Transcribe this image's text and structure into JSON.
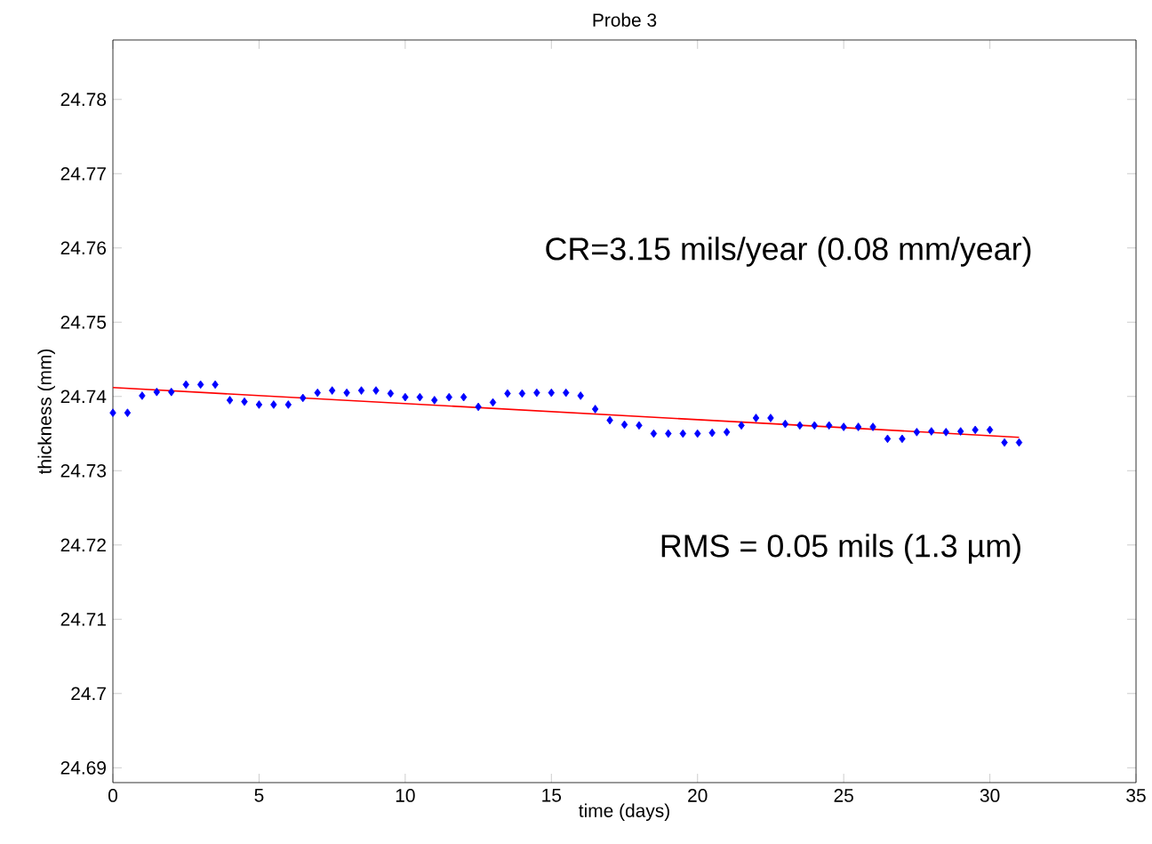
{
  "chart_data": {
    "type": "scatter",
    "title": "Probe 3",
    "xlabel": "time (days)",
    "ylabel": "thickness (mm)",
    "xlim": [
      0,
      35
    ],
    "xticks": [
      0,
      5,
      10,
      15,
      20,
      25,
      30,
      35
    ],
    "ylim": [
      24.688,
      24.788
    ],
    "yticks": [
      24.69,
      24.7,
      24.71,
      24.72,
      24.73,
      24.74,
      24.75,
      24.76,
      24.77,
      24.78
    ],
    "grid": false,
    "annotations": [
      "CR=3.15 mils/year  (0.08 mm/year)",
      "RMS = 0.05 mils (1.3 µm)"
    ],
    "series": [
      {
        "color": "#0000ff",
        "marker": "diamond",
        "x": [
          0,
          0.5,
          1,
          1.5,
          2,
          2.5,
          3,
          3.5,
          4,
          4.5,
          5,
          5.5,
          6,
          6.5,
          7,
          7.5,
          8,
          8.5,
          9,
          9.5,
          10,
          10.5,
          11,
          11.5,
          12,
          12.5,
          13,
          13.5,
          14,
          14.5,
          15,
          15.5,
          16,
          16.5,
          17,
          17.5,
          18,
          18.5,
          19,
          19.5,
          20,
          20.5,
          21,
          21.5,
          22,
          22.5,
          23,
          23.5,
          24,
          24.5,
          25,
          25.5,
          26,
          26.5,
          27,
          27.5,
          28,
          28.5,
          29,
          29.5,
          30,
          30.5,
          31
        ],
        "values": [
          24.7378,
          24.7378,
          24.7401,
          24.7406,
          24.7406,
          24.7416,
          24.7416,
          24.7416,
          24.7395,
          24.7393,
          24.7389,
          24.7389,
          24.7389,
          24.7398,
          24.7405,
          24.7408,
          24.7405,
          24.7408,
          24.7408,
          24.7404,
          24.7399,
          24.7399,
          24.7395,
          24.7399,
          24.7399,
          24.7386,
          24.7392,
          24.7404,
          24.7404,
          24.7405,
          24.7405,
          24.7405,
          24.7401,
          24.7383,
          24.7368,
          24.7362,
          24.7361,
          24.735,
          24.735,
          24.735,
          24.735,
          24.7351,
          24.7352,
          24.7361,
          24.7371,
          24.7371,
          24.7363,
          24.7361,
          24.7361,
          24.7361,
          24.7359,
          24.7359,
          24.7359,
          24.7343,
          24.7343,
          24.7352,
          24.7353,
          24.7352,
          24.7353,
          24.7355,
          24.7355,
          24.7338,
          24.7338
        ]
      },
      {
        "type": "line",
        "color": "#ff0000",
        "x": [
          0,
          31
        ],
        "values": [
          24.7412,
          24.7345
        ]
      }
    ]
  }
}
